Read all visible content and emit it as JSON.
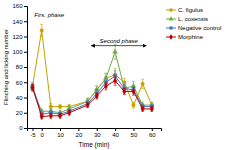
{
  "chart_data": {
    "type": "line",
    "x": [
      -5,
      0,
      5,
      10,
      15,
      25,
      30,
      35,
      40,
      45,
      50,
      55,
      60
    ],
    "series": [
      {
        "name": "C. figulus",
        "color": "#c8a000",
        "marker": "circle",
        "values": [
          55,
          128,
          28,
          28,
          28,
          35,
          50,
          65,
          70,
          60,
          30,
          58,
          30
        ],
        "errors": [
          4,
          8,
          4,
          3,
          3,
          4,
          5,
          6,
          8,
          5,
          4,
          6,
          3
        ]
      },
      {
        "name": "L. coxensis",
        "color": "#70ad47",
        "marker": "triangle",
        "values": [
          52,
          22,
          22,
          20,
          25,
          35,
          50,
          65,
          100,
          52,
          55,
          30,
          30
        ],
        "errors": [
          4,
          3,
          3,
          3,
          3,
          4,
          5,
          7,
          10,
          5,
          6,
          4,
          4
        ]
      },
      {
        "name": "Negative control",
        "color": "#4472c4",
        "marker": "square",
        "values": [
          55,
          18,
          20,
          18,
          22,
          32,
          45,
          60,
          68,
          52,
          50,
          28,
          28
        ],
        "errors": [
          4,
          3,
          3,
          3,
          3,
          4,
          5,
          7,
          7,
          5,
          5,
          3,
          3
        ]
      },
      {
        "name": "Morphine",
        "color": "#c00000",
        "marker": "diamond",
        "values": [
          53,
          15,
          16,
          16,
          20,
          30,
          42,
          55,
          62,
          48,
          48,
          25,
          25
        ],
        "errors": [
          4,
          3,
          3,
          3,
          3,
          3,
          4,
          5,
          6,
          4,
          5,
          3,
          3
        ]
      }
    ],
    "x_label": "Time (min)",
    "y_label": "Flinching and licking number",
    "xlim": [
      -8,
      65
    ],
    "ylim": [
      0,
      160
    ],
    "xticks": [
      -5,
      0,
      10,
      20,
      30,
      40,
      50,
      60
    ],
    "yticks": [
      0,
      20,
      40,
      60,
      80,
      100,
      120,
      140,
      160
    ],
    "annotations": [
      {
        "text": "Firs. phase",
        "x": -4,
        "y": 151
      },
      {
        "text": "Second phase",
        "x_start": 27,
        "x_end": 57,
        "y": 108
      }
    ],
    "legend": "right",
    "grid": false
  }
}
